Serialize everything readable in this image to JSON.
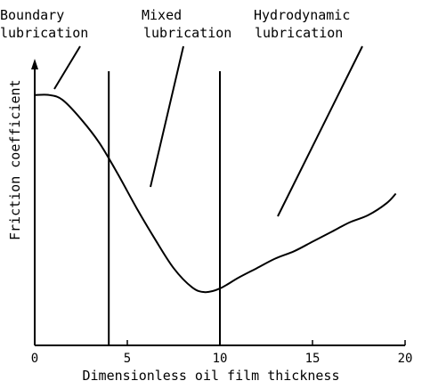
{
  "chart_data": {
    "type": "line",
    "title": "",
    "xlabel": "Dimensionless oil film thickness",
    "ylabel": "Friction coefficient",
    "xlim": [
      0,
      20
    ],
    "xticks": [
      0,
      5,
      10,
      15,
      20
    ],
    "grid": false,
    "y_axis_arrow": true,
    "series": [
      {
        "x": [
          0,
          0.8,
          1.5,
          2.5,
          3.5,
          4.5,
          5.5,
          6.5,
          7.5,
          8.5,
          9.2,
          10,
          11,
          12,
          13,
          14,
          15,
          16,
          17,
          18,
          19,
          19.5
        ],
        "y": [
          0.96,
          0.96,
          0.94,
          0.86,
          0.76,
          0.63,
          0.49,
          0.36,
          0.24,
          0.16,
          0.14,
          0.155,
          0.2,
          0.24,
          0.28,
          0.31,
          0.35,
          0.39,
          0.43,
          0.46,
          0.51,
          0.55
        ]
      }
    ],
    "vertical_lines": [
      4,
      10
    ],
    "regions": [
      {
        "label": "Boundary lubrication",
        "line1": "Boundary",
        "line2": "lubrication"
      },
      {
        "label": "Mixed lubrication",
        "line1": "Mixed",
        "line2": "lubrication"
      },
      {
        "label": "Hydrodynamic lubrication",
        "line1": "Hydrodynamic",
        "line2": "lubrication"
      }
    ]
  }
}
